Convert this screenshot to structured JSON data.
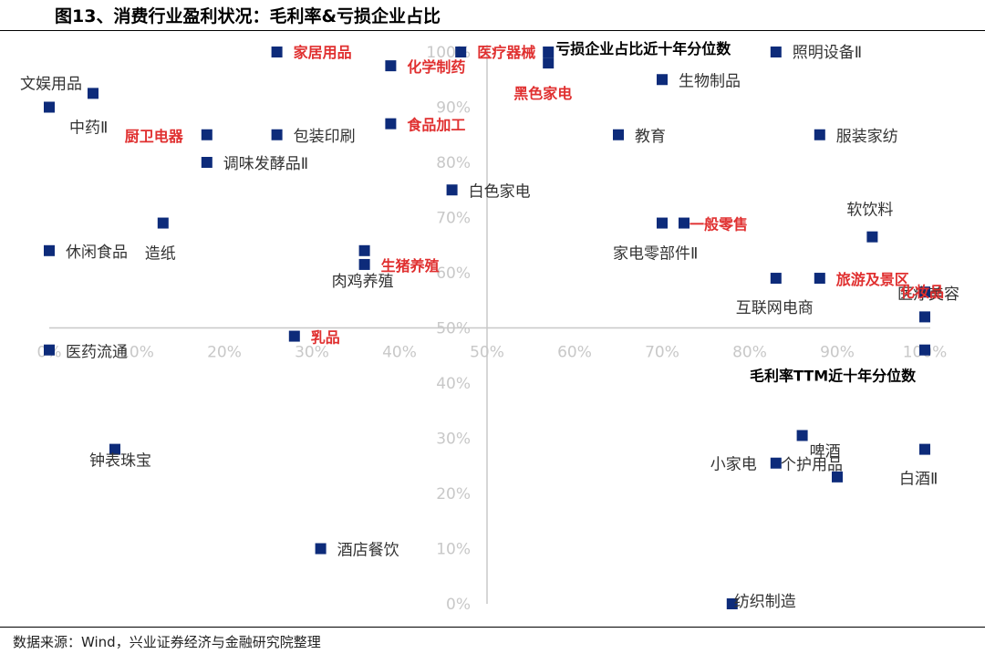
{
  "figure": {
    "title": "图13、消费行业盈利状况：毛利率&亏损企业占比",
    "source": "数据来源：Wind，兴业证券经济与金融研究院整理"
  },
  "colors": {
    "marker": "#0d2b7a",
    "highlight": "#e03030",
    "axis": "#c8c8c8",
    "tick": "#c8c8c8",
    "label": "#333333"
  },
  "chart_data": {
    "type": "scatter",
    "xlabel": "毛利率TTM近十年分位数",
    "ylabel": "亏损企业占比近十年分位数",
    "xlim": [
      0,
      100
    ],
    "ylim": [
      0,
      100
    ],
    "xticks": [
      "0%",
      "10%",
      "20%",
      "30%",
      "40%",
      "50%",
      "60%",
      "70%",
      "80%",
      "90%",
      "100%"
    ],
    "yticks": [
      "0%",
      "10%",
      "20%",
      "30%",
      "40%",
      "50%",
      "60%",
      "70%",
      "80%",
      "90%",
      "100%"
    ],
    "crosshair": [
      50,
      50
    ],
    "points": [
      {
        "x": 0,
        "y": 90,
        "label": "中药Ⅱ",
        "highlight": false,
        "lx": 22,
        "ly": 28
      },
      {
        "x": 5,
        "y": 92.5,
        "label": "文娱用品",
        "highlight": false,
        "lx": -80,
        "ly": -5
      },
      {
        "x": 18,
        "y": 85,
        "label": "厨卫电器",
        "highlight": true,
        "lx": -90,
        "ly": 7
      },
      {
        "x": 26,
        "y": 100,
        "label": "家居用品",
        "highlight": true,
        "lx": 18,
        "ly": 6
      },
      {
        "x": 26,
        "y": 85,
        "label": "包装印刷",
        "highlight": false,
        "lx": 18,
        "ly": 7
      },
      {
        "x": 18,
        "y": 80,
        "label": "调味发酵品Ⅱ",
        "highlight": false,
        "lx": 18,
        "ly": 7
      },
      {
        "x": 39,
        "y": 97.5,
        "label": "化学制药",
        "highlight": true,
        "lx": 18,
        "ly": 7
      },
      {
        "x": 39,
        "y": 87,
        "label": "食品加工",
        "highlight": true,
        "lx": 18,
        "ly": 7
      },
      {
        "x": 46,
        "y": 75,
        "label": "白色家电",
        "highlight": false,
        "lx": 18,
        "ly": 7
      },
      {
        "x": 47,
        "y": 100,
        "label": "医疗器械",
        "highlight": true,
        "lx": 18,
        "ly": 6
      },
      {
        "x": 57,
        "y": 100,
        "label": "亏损企业占比近十年分位数",
        "highlight": false,
        "lx": 8,
        "ly": 2
      },
      {
        "x": 57,
        "y": 98,
        "label": "黑色家电",
        "highlight": true,
        "lx": -38,
        "ly": 39
      },
      {
        "x": 70,
        "y": 95,
        "label": "生物制品",
        "highlight": false,
        "lx": 18,
        "ly": 7
      },
      {
        "x": 65,
        "y": 85,
        "label": "教育",
        "highlight": false,
        "lx": 18,
        "ly": 7
      },
      {
        "x": 83,
        "y": 100,
        "label": "照明设备Ⅱ",
        "highlight": false,
        "lx": 18,
        "ly": 6
      },
      {
        "x": 88,
        "y": 85,
        "label": "服装家纺",
        "highlight": false,
        "lx": 18,
        "ly": 7
      },
      {
        "x": 13,
        "y": 69,
        "label": "造纸",
        "highlight": false,
        "lx": -20,
        "ly": 39
      },
      {
        "x": 0,
        "y": 64,
        "label": "休闲食品",
        "highlight": false,
        "lx": 18,
        "ly": 7
      },
      {
        "x": 36,
        "y": 64,
        "label": "肉鸡养殖",
        "highlight": false,
        "lx": -36,
        "ly": 39
      },
      {
        "x": 36,
        "y": 61.5,
        "label": "生猪养殖",
        "highlight": true,
        "lx": 18,
        "ly": 7
      },
      {
        "x": 70,
        "y": 69,
        "label": "家电零部件Ⅱ",
        "highlight": false,
        "lx": -54,
        "ly": 39
      },
      {
        "x": 72.5,
        "y": 69,
        "label": "一般零售",
        "highlight": true,
        "lx": 6,
        "ly": 7
      },
      {
        "x": 94,
        "y": 66.5,
        "label": "软饮料",
        "highlight": false,
        "lx": -28,
        "ly": -24
      },
      {
        "x": 83,
        "y": 59,
        "label": "互联网电商",
        "highlight": false,
        "lx": -44,
        "ly": 38
      },
      {
        "x": 88,
        "y": 59,
        "label": "旅游及景区",
        "highlight": true,
        "lx": 18,
        "ly": 7
      },
      {
        "x": 100,
        "y": 56.5,
        "label": "医疗美容",
        "highlight": false,
        "lx": -30,
        "ly": 8
      },
      {
        "x": 100,
        "y": 52,
        "label": "化妆品",
        "highlight": true,
        "lx": -27,
        "ly": -22
      },
      {
        "x": 28,
        "y": 48.5,
        "label": "乳品",
        "highlight": true,
        "lx": 18,
        "ly": 7
      },
      {
        "x": 0,
        "y": 46,
        "label": "医药流通",
        "highlight": false,
        "lx": 18,
        "ly": 8
      },
      {
        "x": 100,
        "y": 46,
        "label": "毛利率TTM近十年分位数",
        "highlight": false,
        "lx": -192,
        "ly": 34
      },
      {
        "x": 7.5,
        "y": 28,
        "label": "钟表珠宝",
        "highlight": false,
        "lx": -28,
        "ly": 18
      },
      {
        "x": 31,
        "y": 10,
        "label": "酒店餐饮",
        "highlight": false,
        "lx": 18,
        "ly": 7
      },
      {
        "x": 78,
        "y": 0,
        "label": "纺织制造",
        "highlight": false,
        "lx": 2,
        "ly": 3
      },
      {
        "x": 83,
        "y": 25.5,
        "label": "小家电",
        "highlight": false,
        "lx": -72,
        "ly": 7
      },
      {
        "x": 86,
        "y": 30.5,
        "label": "啤酒",
        "highlight": false,
        "lx": 8,
        "ly": 23
      },
      {
        "x": 90,
        "y": 23,
        "label": "个护用品",
        "highlight": false,
        "lx": -62,
        "ly": -8
      },
      {
        "x": 100,
        "y": 28,
        "label": "白酒Ⅱ",
        "highlight": false,
        "lx": -28,
        "ly": 38
      }
    ]
  }
}
